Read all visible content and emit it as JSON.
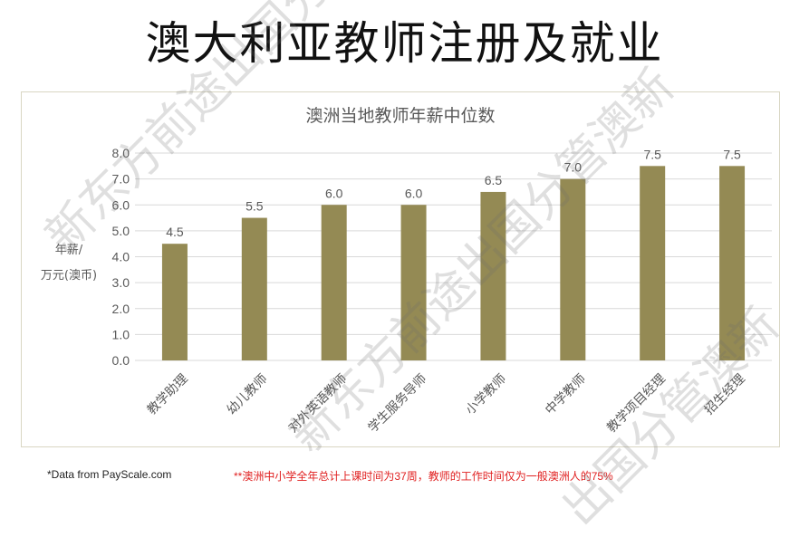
{
  "slide": {
    "title": "澳大利亚教师注册及就业"
  },
  "chart_data": {
    "type": "bar",
    "title": "澳洲当地教师年薪中位数",
    "ylabel_lines": [
      "年薪/",
      "万元(澳币)"
    ],
    "categories": [
      "教学助理",
      "幼儿教师",
      "对外英语教师",
      "学生服务导师",
      "小学教师",
      "中学教师",
      "教学项目经理",
      "招生经理"
    ],
    "values": [
      4.5,
      5.5,
      6.0,
      6.0,
      6.5,
      7.0,
      7.5,
      7.5
    ],
    "data_labels": [
      "4.5",
      "5.5",
      "6.0",
      "6.0",
      "6.5",
      "7.0",
      "7.5",
      "7.5"
    ],
    "yticks": [
      "0.0",
      "1.0",
      "2.0",
      "3.0",
      "4.0",
      "5.0",
      "6.0",
      "7.0",
      "8.0"
    ],
    "ylim": [
      0,
      8
    ],
    "grid": true,
    "bar_color": "#948a54",
    "gridline_color": "#d9d9d9",
    "text_color": "#595959"
  },
  "footnotes": {
    "source": "*Data from PayScale.com",
    "note": "**澳洲中小学全年总计上课时间为37周，教师的工作时间仅为一般澳洲人的75%"
  },
  "watermarks": [
    "新东方前途出国分管澳新",
    "新东方前途出国分管澳新",
    "出国分管澳新"
  ],
  "colors": {
    "frame_border": "#d9d6c3",
    "note_red": "#e02020"
  }
}
